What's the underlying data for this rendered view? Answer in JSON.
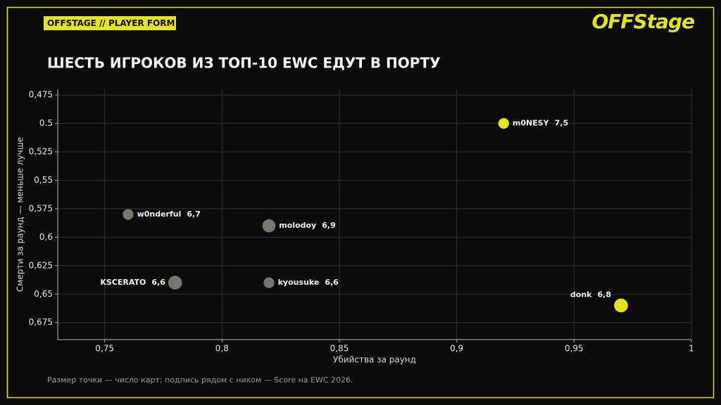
{
  "header": {
    "badge": "OFFSTAGE // PLAYER FORM",
    "logo": "OFFStage"
  },
  "chart_data": {
    "type": "scatter",
    "title": "ШЕСТЬ ИГРОКОВ ИЗ ТОП-10 EWC ЕДУТ В ПОРТУ",
    "xlabel": "Убийства за раунд",
    "ylabel": "Смерти за раунд — меньше лучше",
    "note": "Размер точки — число карт; подпись рядом с ником — Score на EWC 2026.",
    "labels": [
      "m0NESY",
      "w0nderful",
      "molodoy",
      "KSCERATO",
      "kyousuke",
      "donk"
    ],
    "x": [
      0.92,
      0.76,
      0.82,
      0.78,
      0.82,
      0.97
    ],
    "y": [
      0.5,
      0.58,
      0.59,
      0.64,
      0.64,
      0.66
    ],
    "sizes": [
      6,
      6,
      9,
      10,
      6,
      10
    ],
    "scores": [
      7.5,
      6.7,
      6.9,
      6.6,
      6.6,
      6.8
    ],
    "score_labels": [
      "7,5",
      "6,7",
      "6,9",
      "6,6",
      "6,6",
      "6,8"
    ],
    "colors": [
      "#e3e41a",
      "#77776f",
      "#77776f",
      "#77776f",
      "#77776f",
      "#e3e41a"
    ],
    "xlim": [
      0.73,
      1
    ],
    "ylim": [
      0.47,
      0.69
    ],
    "y_inverted": true,
    "grid": true,
    "xticks": [
      {
        "value": 0.75,
        "label": "0,75"
      },
      {
        "value": 0.8,
        "label": "0,8"
      },
      {
        "value": 0.85,
        "label": "0,85"
      },
      {
        "value": 0.9,
        "label": "0,9"
      },
      {
        "value": 0.95,
        "label": "0,95"
      },
      1
    ],
    "yticks": [
      {
        "value": 0.475,
        "label": "0,475"
      },
      0.5,
      {
        "value": 0.525,
        "label": "0,525"
      },
      {
        "value": 0.55,
        "label": "0,55"
      },
      {
        "value": 0.575,
        "label": "0,575"
      },
      {
        "value": 0.6,
        "label": "0,6"
      },
      {
        "value": 0.625,
        "label": "0,625"
      },
      {
        "value": 0.65,
        "label": "0,65"
      },
      {
        "value": 0.675,
        "label": "0,675"
      }
    ]
  }
}
